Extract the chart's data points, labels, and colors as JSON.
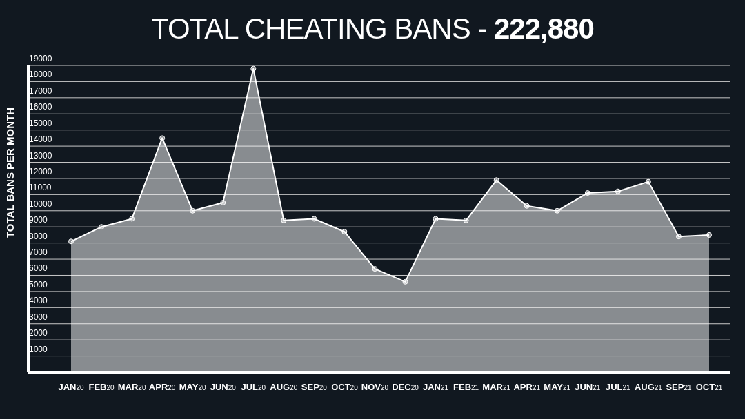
{
  "chart_data": {
    "type": "area",
    "title": "TOTAL CHEATING BANS - 222,880",
    "ylabel": "TOTAL BANS PER MONTH",
    "categories": [
      "JAN20",
      "FEB20",
      "MAR20",
      "APR20",
      "MAY20",
      "JUN20",
      "JUL20",
      "AUG20",
      "SEP20",
      "OCT20",
      "NOV20",
      "DEC20",
      "JAN21",
      "FEB21",
      "MAR21",
      "APR21",
      "MAY21",
      "JUN21",
      "JUL21",
      "AUG21",
      "SEP21",
      "OCT21"
    ],
    "series": [
      {
        "color": "#ffffff",
        "values": [
          8100,
          9000,
          9500,
          14500,
          10000,
          10500,
          18800,
          9400,
          9500,
          8700,
          6400,
          5600,
          9500,
          9400,
          11900,
          10300,
          10000,
          11100,
          11200,
          11800,
          8400,
          8500
        ]
      }
    ],
    "ylim": [
      0,
      19000
    ],
    "yticks": [
      {
        "value": 0,
        "label": null
      },
      1000,
      2000,
      3000,
      4000,
      5000,
      6000,
      7000,
      8000,
      9000,
      10000,
      11000,
      12000,
      13000,
      14000,
      15000,
      16000,
      17000,
      18000,
      19000
    ],
    "grid": "y",
    "marker": "circle",
    "line_style": "solid"
  }
}
